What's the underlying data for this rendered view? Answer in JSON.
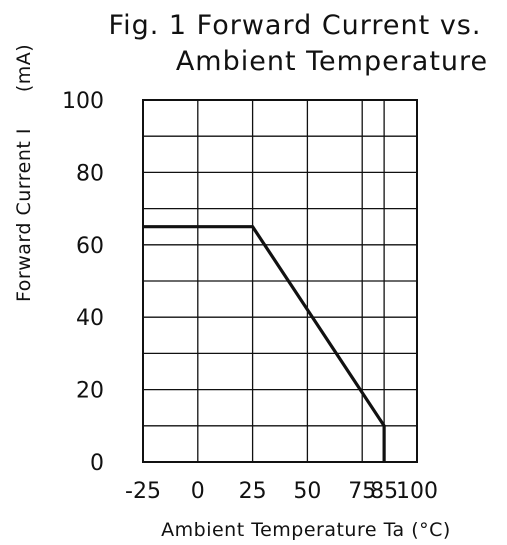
{
  "chart_data": {
    "type": "line",
    "title": "Fig. 1 Forward Current vs. Ambient Temperature",
    "title_lines": [
      "Fig. 1 Forward Current vs.",
      "Ambient Temperature"
    ],
    "xlabel": "Ambient Temperature Ta (°C)",
    "ylabel": "Forward Current I",
    "ylabel_unit": "(mA)",
    "x_ticks": [
      "-25",
      "0",
      "25",
      "50",
      "75",
      "85",
      "100"
    ],
    "y_ticks": [
      "0",
      "20",
      "40",
      "60",
      "80",
      "100"
    ],
    "xlim": [
      -25,
      100
    ],
    "ylim": [
      0,
      100
    ],
    "grid": true,
    "series": [
      {
        "x": [
          -25,
          25,
          85,
          85
        ],
        "y": [
          65,
          65,
          10,
          0
        ]
      }
    ]
  }
}
